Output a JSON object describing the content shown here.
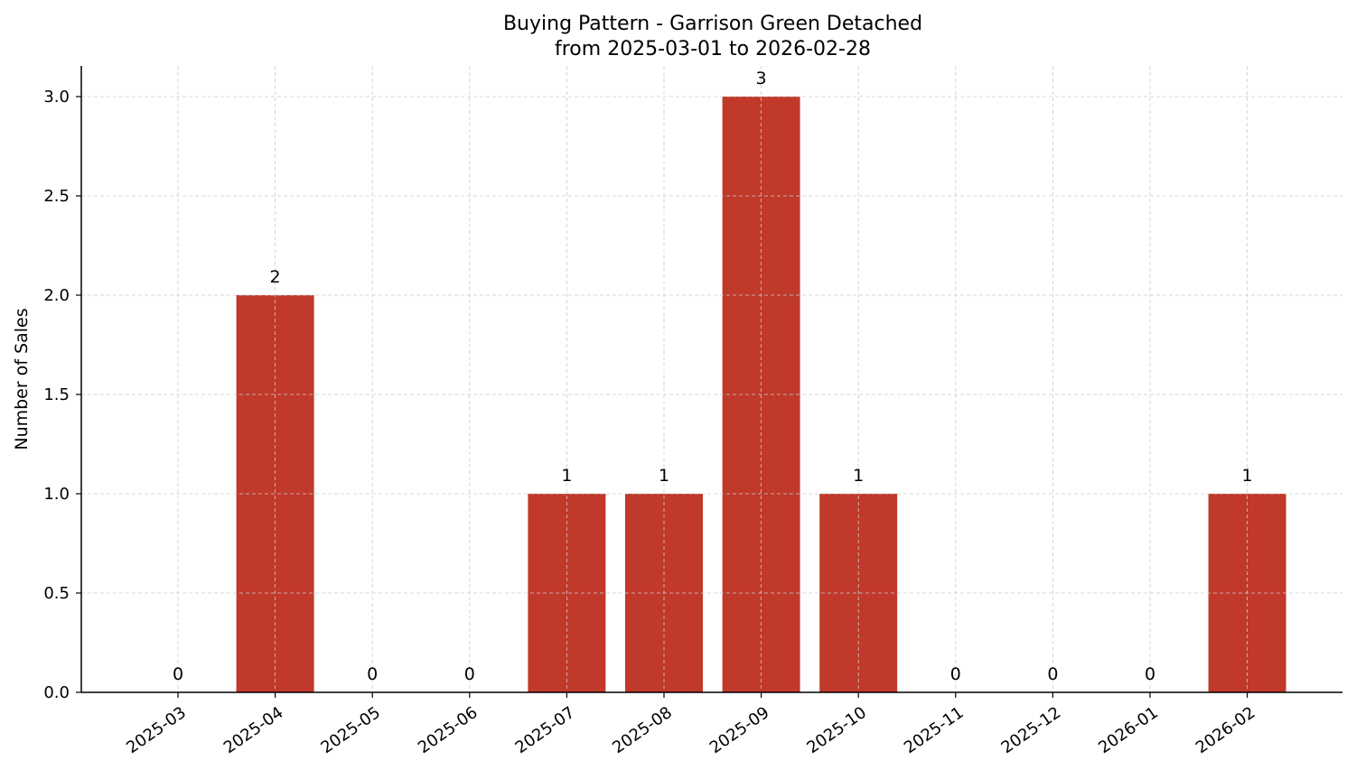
{
  "chart_data": {
    "type": "bar",
    "title": "Buying Pattern - Garrison Green Detached",
    "subtitle": "from 2025-03-01 to 2026-02-28",
    "xlabel": "",
    "ylabel": "Number of Sales",
    "categories": [
      "2025-03",
      "2025-04",
      "2025-05",
      "2025-06",
      "2025-07",
      "2025-08",
      "2025-09",
      "2025-10",
      "2025-11",
      "2025-12",
      "2026-01",
      "2026-02"
    ],
    "values": [
      0,
      2,
      0,
      0,
      1,
      1,
      3,
      1,
      0,
      0,
      0,
      1
    ],
    "data_labels": [
      "0",
      "2",
      "0",
      "0",
      "1",
      "1",
      "3",
      "1",
      "0",
      "0",
      "0",
      "1"
    ],
    "yticks": [
      "0.0",
      "0.5",
      "1.0",
      "1.5",
      "2.0",
      "2.5",
      "3.0"
    ],
    "ylim": [
      0,
      3.15
    ],
    "grid": true,
    "legend": null,
    "bar_color": "#c0392b"
  }
}
